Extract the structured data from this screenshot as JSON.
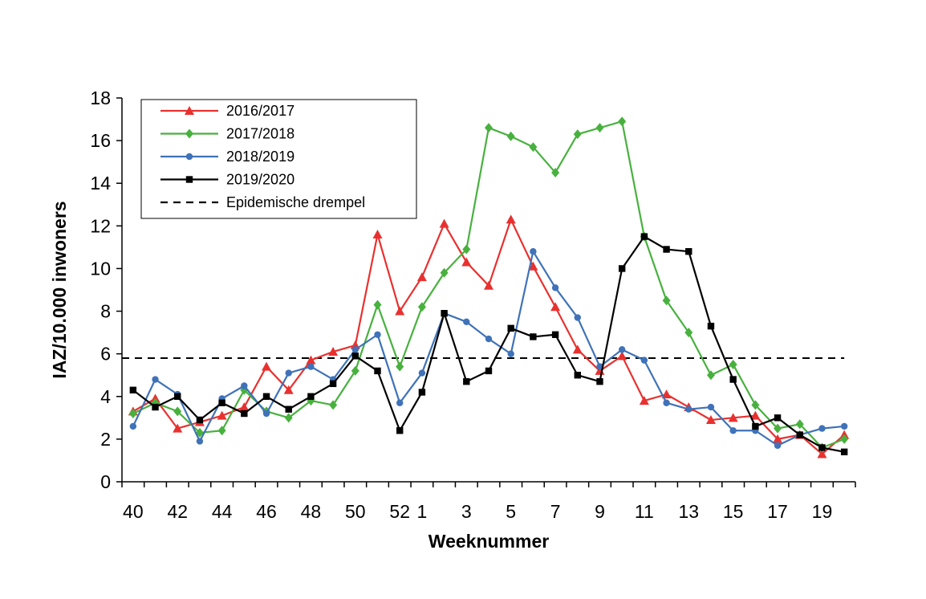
{
  "chart_data": {
    "type": "line",
    "title": "",
    "xlabel": "Weeknummer",
    "ylabel": "IAZ/10.000 inwoners",
    "ylim": [
      0,
      18
    ],
    "y_ticks": [
      0,
      2,
      4,
      6,
      8,
      10,
      12,
      14,
      16,
      18
    ],
    "grid": false,
    "legend_position": "top-left",
    "categories": [
      "40",
      "41",
      "42",
      "43",
      "44",
      "45",
      "46",
      "47",
      "48",
      "49",
      "50",
      "51",
      "52",
      "1",
      "2",
      "3",
      "4",
      "5",
      "6",
      "7",
      "8",
      "9",
      "10",
      "11",
      "12",
      "13",
      "14",
      "15",
      "16",
      "17",
      "18",
      "19",
      "20"
    ],
    "x_tick_labels": [
      "40",
      "42",
      "44",
      "46",
      "48",
      "50",
      "52",
      "1",
      "3",
      "5",
      "7",
      "9",
      "11",
      "13",
      "15",
      "17",
      "19"
    ],
    "series": [
      {
        "name": "2016/2017",
        "color": "#e8312f",
        "marker": "triangle",
        "values": [
          3.3,
          3.9,
          2.5,
          2.8,
          3.1,
          3.5,
          5.4,
          4.3,
          5.7,
          6.1,
          6.4,
          11.6,
          8.0,
          9.6,
          12.1,
          10.3,
          9.2,
          12.3,
          10.1,
          8.2,
          6.2,
          5.2,
          5.9,
          3.8,
          4.1,
          3.5,
          2.9,
          3.0,
          3.1,
          2.0,
          2.2,
          1.3,
          2.2
        ]
      },
      {
        "name": "2017/2018",
        "color": "#48b13e",
        "marker": "diamond",
        "values": [
          3.2,
          3.7,
          3.3,
          2.3,
          2.4,
          4.3,
          3.3,
          3.0,
          3.8,
          3.6,
          5.2,
          8.3,
          5.4,
          8.2,
          9.8,
          10.9,
          16.6,
          16.2,
          15.7,
          14.5,
          16.3,
          16.6,
          16.9,
          11.5,
          8.5,
          7.0,
          5.0,
          5.5,
          3.6,
          2.5,
          2.7,
          1.6,
          2.0
        ]
      },
      {
        "name": "2018/2019",
        "color": "#3f72b8",
        "marker": "circle",
        "values": [
          2.6,
          4.8,
          4.1,
          1.9,
          3.9,
          4.5,
          3.2,
          5.1,
          5.4,
          4.8,
          6.2,
          6.9,
          3.7,
          5.1,
          7.9,
          7.5,
          6.7,
          6.0,
          10.8,
          9.1,
          7.7,
          5.4,
          6.2,
          5.7,
          3.7,
          3.4,
          3.5,
          2.4,
          2.4,
          1.7,
          2.2,
          2.5,
          2.6
        ]
      },
      {
        "name": "2019/2020",
        "color": "#000000",
        "marker": "square",
        "values": [
          4.3,
          3.5,
          4.0,
          2.9,
          3.7,
          3.2,
          4.0,
          3.4,
          4.0,
          4.6,
          5.9,
          5.2,
          2.4,
          4.2,
          7.9,
          4.7,
          5.2,
          7.2,
          6.8,
          6.9,
          5.0,
          4.7,
          10.0,
          11.5,
          10.9,
          10.8,
          7.3,
          4.8,
          2.6,
          3.0,
          2.2,
          1.6,
          1.4
        ]
      }
    ],
    "threshold": {
      "name": "Epidemische drempel",
      "value": 5.8,
      "color": "#000000",
      "style": "dashed"
    }
  }
}
